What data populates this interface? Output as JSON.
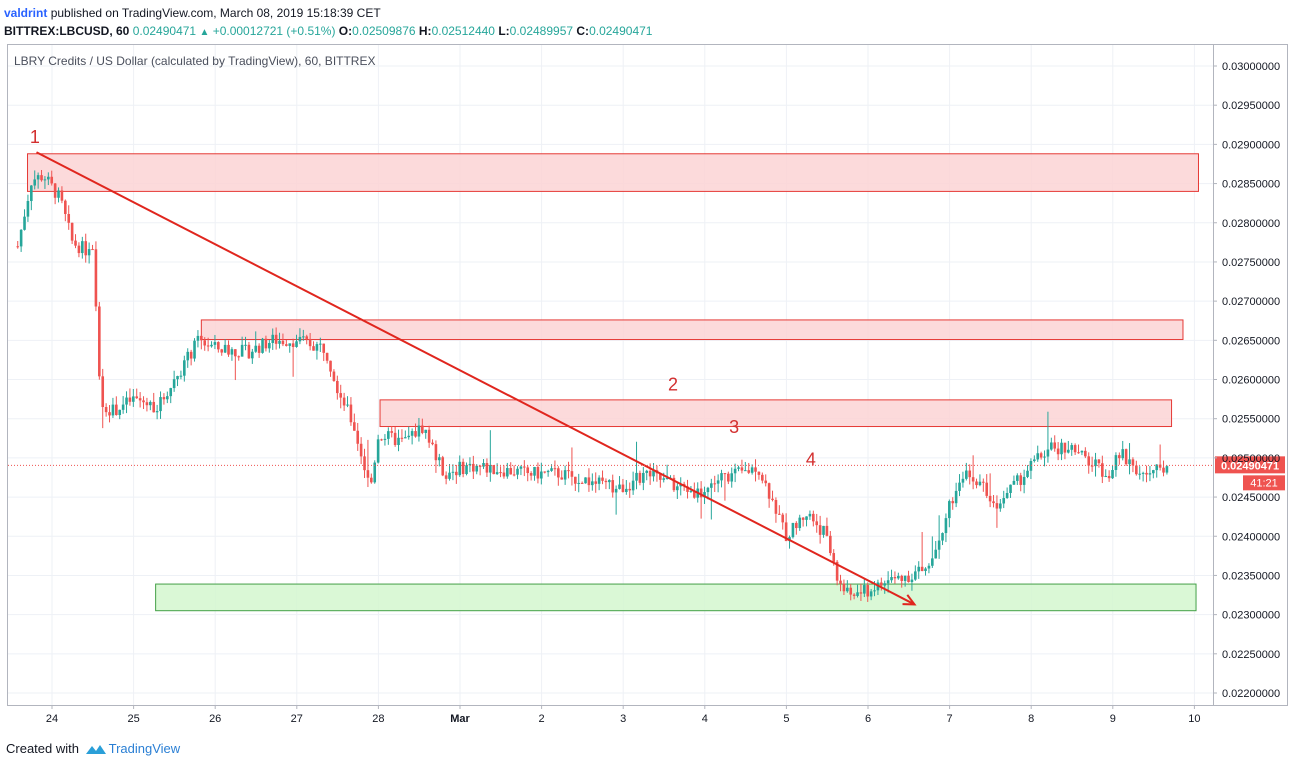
{
  "header": {
    "user": "valdrint",
    "published_text": "published on TradingView.com, March 08, 2019 15:18:39 CET",
    "symbol": "BITTREX:LBCUSD, 60",
    "last": "0.02490471",
    "change": "+0.00012721 (+0.51%)",
    "o_label": "O:",
    "o": "0.02509876",
    "h_label": "H:",
    "h": "0.02512440",
    "l_label": "L:",
    "l": "0.02489957",
    "c_label": "C:",
    "c": "0.02490471"
  },
  "footer": {
    "created_with": "Created with",
    "brand": "TradingView"
  },
  "colors": {
    "up": "#26a69a",
    "down": "#ef5350",
    "zone_red_fill": "#fcd3d5",
    "zone_red_stroke": "#e53935",
    "zone_green_fill": "#d4f7cf",
    "zone_green_stroke": "#43a047",
    "trendline": "#e0261e",
    "price_tag": "#ef5350"
  },
  "chart_data": {
    "type": "candlestick",
    "title": "LBRY Credits / US Dollar (calculated by TradingView), 60, BITTREX",
    "x_tick_labels": [
      "24",
      "25",
      "26",
      "27",
      "28",
      "Mar",
      "2",
      "3",
      "4",
      "5",
      "6",
      "7",
      "8",
      "9",
      "10"
    ],
    "y_tick_labels": [
      "0.03000000",
      "0.02950000",
      "0.02900000",
      "0.02850000",
      "0.02800000",
      "0.02750000",
      "0.02700000",
      "0.02650000",
      "0.02600000",
      "0.02550000",
      "0.02500000",
      "0.02450000",
      "0.02400000",
      "0.02350000",
      "0.02300000",
      "0.02250000",
      "0.02200000"
    ],
    "ylim": [
      0.0219,
      0.0303
    ],
    "last_price": 0.02490471,
    "last_price_label": "0.02490471",
    "countdown": "41:21",
    "zones": [
      {
        "kind": "resistance",
        "x_from": 23.7,
        "x_to": 38.05,
        "y_from": 0.0284,
        "y_to": 0.02888
      },
      {
        "kind": "resistance",
        "x_from": 25.83,
        "x_to": 37.86,
        "y_from": 0.02651,
        "y_to": 0.02676
      },
      {
        "kind": "resistance",
        "x_from": 28.02,
        "x_to": 37.72,
        "y_from": 0.0254,
        "y_to": 0.02574
      },
      {
        "kind": "support",
        "x_from": 25.27,
        "x_to": 38.02,
        "y_from": 0.02305,
        "y_to": 0.02339
      }
    ],
    "trendline": {
      "from": [
        23.81,
        0.0289
      ],
      "to": [
        34.57,
        0.02313
      ]
    },
    "annotations": [
      {
        "text": "1",
        "x": 23.79,
        "y": 0.02902
      },
      {
        "text": "2",
        "x": 31.61,
        "y": 0.02586
      },
      {
        "text": "3",
        "x": 32.36,
        "y": 0.02532
      },
      {
        "text": "4",
        "x": 33.3,
        "y": 0.0249
      }
    ],
    "price_path": [
      [
        23.58,
        0.0277
      ],
      [
        23.75,
        0.02855
      ],
      [
        23.9,
        0.0286
      ],
      [
        24.1,
        0.0283
      ],
      [
        24.25,
        0.02775
      ],
      [
        24.5,
        0.0276
      ],
      [
        24.6,
        0.0257
      ],
      [
        24.75,
        0.0256
      ],
      [
        25.0,
        0.02575
      ],
      [
        25.3,
        0.02565
      ],
      [
        25.5,
        0.026
      ],
      [
        25.8,
        0.0265
      ],
      [
        26.0,
        0.0264
      ],
      [
        26.4,
        0.02635
      ],
      [
        26.7,
        0.0265
      ],
      [
        27.0,
        0.0265
      ],
      [
        27.35,
        0.0264
      ],
      [
        27.5,
        0.0259
      ],
      [
        27.7,
        0.0254
      ],
      [
        27.9,
        0.0246
      ],
      [
        28.0,
        0.0253
      ],
      [
        28.3,
        0.0252
      ],
      [
        28.55,
        0.0254
      ],
      [
        28.8,
        0.0248
      ],
      [
        29.1,
        0.0249
      ],
      [
        29.5,
        0.02485
      ],
      [
        29.85,
        0.0248
      ],
      [
        30.2,
        0.0248
      ],
      [
        30.6,
        0.0247
      ],
      [
        30.95,
        0.0246
      ],
      [
        31.3,
        0.0248
      ],
      [
        31.6,
        0.02465
      ],
      [
        31.95,
        0.02455
      ],
      [
        32.2,
        0.02475
      ],
      [
        32.45,
        0.0248
      ],
      [
        32.65,
        0.0249
      ],
      [
        32.85,
        0.0244
      ],
      [
        33.0,
        0.024
      ],
      [
        33.25,
        0.0243
      ],
      [
        33.5,
        0.024
      ],
      [
        33.6,
        0.0235
      ],
      [
        33.75,
        0.02325
      ],
      [
        34.0,
        0.0233
      ],
      [
        34.3,
        0.02345
      ],
      [
        34.5,
        0.0235
      ],
      [
        34.75,
        0.0236
      ],
      [
        35.0,
        0.0244
      ],
      [
        35.2,
        0.0248
      ],
      [
        35.4,
        0.0247
      ],
      [
        35.55,
        0.0244
      ],
      [
        35.8,
        0.02465
      ],
      [
        36.0,
        0.0249
      ],
      [
        36.2,
        0.0251
      ],
      [
        36.45,
        0.02515
      ],
      [
        36.7,
        0.02495
      ],
      [
        36.95,
        0.0248
      ],
      [
        37.1,
        0.02505
      ],
      [
        37.3,
        0.02485
      ],
      [
        37.45,
        0.02475
      ],
      [
        37.6,
        0.0249
      ],
      [
        37.7,
        0.02490471
      ]
    ]
  }
}
